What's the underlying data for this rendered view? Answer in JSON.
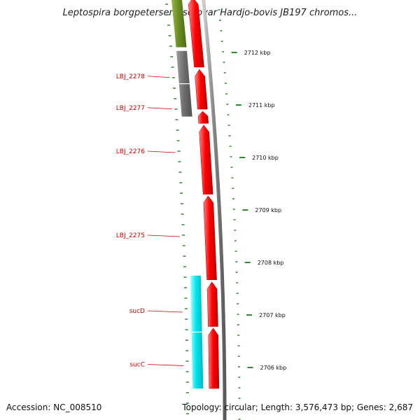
{
  "title": "Leptospira borgpetersenii serovar Hardjo-bovis JB197 chromos...",
  "accession": "Accession: NC_008510",
  "topology": "Topology: circular; Length: 3,576,473 bp; Genes: 2,687",
  "colors": {
    "forward_cds": "#ff0000",
    "reverse_olive": "#6b8e23",
    "reverse_gray": "#707070",
    "reverse_cyan": "#00e5ee",
    "backbone": "#888888",
    "gc_ticks": "#2e8b2e",
    "label": "#cc0000"
  },
  "gene_labels": [
    {
      "name": "LBJ_2278",
      "kbp": 2711.55
    },
    {
      "name": "LBJ_2277",
      "kbp": 2710.95
    },
    {
      "name": "LBJ_2276",
      "kbp": 2710.12
    },
    {
      "name": "LBJ_2275",
      "kbp": 2708.52
    },
    {
      "name": "sucD",
      "kbp": 2707.08
    },
    {
      "name": "sucC",
      "kbp": 2706.06
    }
  ],
  "scale_ticks": [
    {
      "label": "2712 kbp",
      "kbp": 2712
    },
    {
      "label": "2711 kbp",
      "kbp": 2711
    },
    {
      "label": "2710 kbp",
      "kbp": 2710
    },
    {
      "label": "2709 kbp",
      "kbp": 2709
    },
    {
      "label": "2708 kbp",
      "kbp": 2708
    },
    {
      "label": "2707 kbp",
      "kbp": 2707
    },
    {
      "label": "2706 kbp",
      "kbp": 2706
    }
  ],
  "forward_features": [
    {
      "start_kbp": 2711.72,
      "end_kbp": 2713.05
    },
    {
      "start_kbp": 2710.92,
      "end_kbp": 2711.68
    },
    {
      "start_kbp": 2710.65,
      "end_kbp": 2710.88
    },
    {
      "start_kbp": 2709.3,
      "end_kbp": 2710.62
    },
    {
      "start_kbp": 2707.67,
      "end_kbp": 2709.27
    },
    {
      "start_kbp": 2706.78,
      "end_kbp": 2707.63
    },
    {
      "start_kbp": 2705.6,
      "end_kbp": 2706.75
    }
  ],
  "reverse_features": [
    {
      "start_kbp": 2712.1,
      "end_kbp": 2713.05,
      "color": "olive"
    },
    {
      "start_kbp": 2710.78,
      "end_kbp": 2712.03,
      "color": "gray"
    },
    {
      "start_kbp": 2705.6,
      "end_kbp": 2707.75,
      "color": "cyan"
    }
  ]
}
